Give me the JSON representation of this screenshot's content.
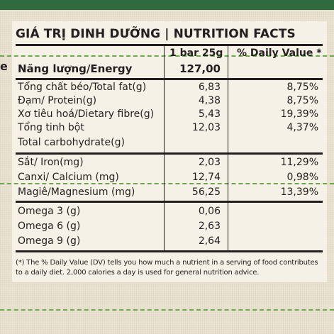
{
  "side_mark": "e",
  "title": "GIÁ TRỊ DINH DƯỠNG | NUTRITION FACTS",
  "columns": {
    "serving": "1 bar 25g",
    "daily_value": "% Daily Value *"
  },
  "energy": {
    "name": "Năng lượng/Energy",
    "value": "127,00"
  },
  "group1": [
    {
      "name": "Tổng chất béo/Total fat(g)",
      "value": "6,83",
      "dv": "8,75%"
    },
    {
      "name": "Đạm/ Protein(g)",
      "value": "4,38",
      "dv": "8,75%"
    },
    {
      "name": "Xơ tiêu hoá/Dietary fibre(g)",
      "value": "5,43",
      "dv": "19,39%"
    },
    {
      "name": "Tổng tinh bột",
      "name2": "Total carbohydrate(g)",
      "value": "12,03",
      "dv": "4,37%"
    }
  ],
  "group2": [
    {
      "name": "Sắt/ Iron(mg)",
      "value": "2,03",
      "dv": "11,29%"
    },
    {
      "name": "Canxi/ Calcium (mg)",
      "value": "12,74",
      "dv": "0,98%"
    },
    {
      "name": "Magiê/Magnesium (mg)",
      "value": "56,25",
      "dv": "13,39%"
    }
  ],
  "group3": [
    {
      "name": "Omega 3 (g)",
      "value": "0,06"
    },
    {
      "name": "Omega 6 (g)",
      "value": "2,63"
    },
    {
      "name": "Omega 9 (g)",
      "value": "2,64"
    }
  ],
  "footnote": "(*) The % Daily Value (DV) tells you how much a nutrient in a serving of food contributes to a daily diet. 2,000 calories a day is used for general nutrition advice."
}
